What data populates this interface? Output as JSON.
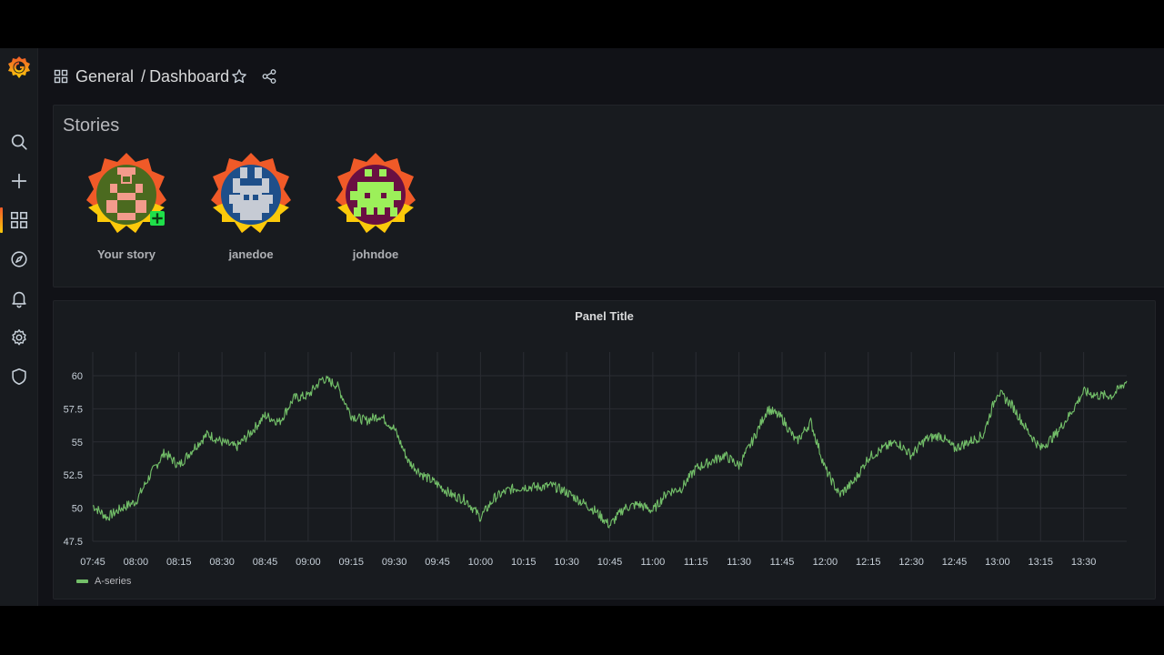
{
  "breadcrumb": {
    "folder": "General",
    "separator": "/",
    "dashboard": "Dashboard"
  },
  "sidebar": {
    "icons": [
      "search-icon",
      "plus-icon",
      "dashboards-icon",
      "explore-icon",
      "alerting-icon",
      "gear-icon",
      "shield-icon"
    ],
    "active": "dashboards-icon"
  },
  "stories_panel": {
    "title": "Stories",
    "stories": [
      {
        "name": "Your story",
        "has_add_badge": true
      },
      {
        "name": "janedoe",
        "has_add_badge": false
      },
      {
        "name": "johndoe",
        "has_add_badge": false
      }
    ]
  },
  "graph_panel": {
    "title": "Panel Title",
    "legend": [
      {
        "name": "A-series",
        "color": "#73bf69"
      }
    ]
  },
  "colors": {
    "series": "#73bf69",
    "accent_orange": "#f05a28",
    "accent_yellow": "#fbca0a"
  },
  "chart_data": {
    "type": "line",
    "title": "Panel Title",
    "xlabel": "",
    "ylabel": "",
    "x_ticks": [
      "07:45",
      "08:00",
      "08:15",
      "08:30",
      "08:45",
      "09:00",
      "09:15",
      "09:30",
      "09:45",
      "10:00",
      "10:15",
      "10:30",
      "10:45",
      "11:00",
      "11:15",
      "11:30",
      "11:45",
      "12:00",
      "12:15",
      "12:30",
      "12:45",
      "13:00",
      "13:15",
      "13:30"
    ],
    "y_ticks": [
      "47.5",
      "50",
      "52.5",
      "55",
      "57.5",
      "60"
    ],
    "ylim": [
      47.5,
      60
    ],
    "xlim": [
      "07:45",
      "13:45"
    ],
    "grid": true,
    "legend_position": "bottom-left",
    "series": [
      {
        "name": "A-series",
        "color": "#73bf69",
        "x": [
          "07:45",
          "07:50",
          "07:55",
          "08:00",
          "08:05",
          "08:10",
          "08:15",
          "08:20",
          "08:25",
          "08:30",
          "08:35",
          "08:40",
          "08:45",
          "08:50",
          "08:55",
          "09:00",
          "09:05",
          "09:10",
          "09:15",
          "09:20",
          "09:25",
          "09:30",
          "09:35",
          "09:40",
          "09:45",
          "09:50",
          "09:55",
          "10:00",
          "10:05",
          "10:10",
          "10:15",
          "10:20",
          "10:25",
          "10:30",
          "10:35",
          "10:40",
          "10:45",
          "10:50",
          "10:55",
          "11:00",
          "11:05",
          "11:10",
          "11:15",
          "11:20",
          "11:25",
          "11:30",
          "11:35",
          "11:40",
          "11:45",
          "11:50",
          "11:55",
          "12:00",
          "12:05",
          "12:10",
          "12:15",
          "12:20",
          "12:25",
          "12:30",
          "12:35",
          "12:40",
          "12:45",
          "12:50",
          "12:55",
          "13:00",
          "13:05",
          "13:10",
          "13:15",
          "13:20",
          "13:25",
          "13:30",
          "13:35",
          "13:40",
          "13:45"
        ],
        "values": [
          50.2,
          49.3,
          50.0,
          50.5,
          52.5,
          54.2,
          53.2,
          54.5,
          55.6,
          55.0,
          54.6,
          55.7,
          57.0,
          56.5,
          58.3,
          58.5,
          59.8,
          59.3,
          57.0,
          56.6,
          57.0,
          56.0,
          53.5,
          52.5,
          51.8,
          51.0,
          50.6,
          49.3,
          50.8,
          51.4,
          51.6,
          51.6,
          51.7,
          51.2,
          50.5,
          49.8,
          48.7,
          50.0,
          50.3,
          49.8,
          51.2,
          51.5,
          53.0,
          53.5,
          54.0,
          53.2,
          55.2,
          57.5,
          56.8,
          55.0,
          56.5,
          53.0,
          51.0,
          52.0,
          53.8,
          54.5,
          55.0,
          54.0,
          55.2,
          55.5,
          54.5,
          55.0,
          55.5,
          58.8,
          57.8,
          56.0,
          54.5,
          55.5,
          57.0,
          58.8,
          58.5,
          58.5,
          59.6
        ]
      }
    ]
  }
}
